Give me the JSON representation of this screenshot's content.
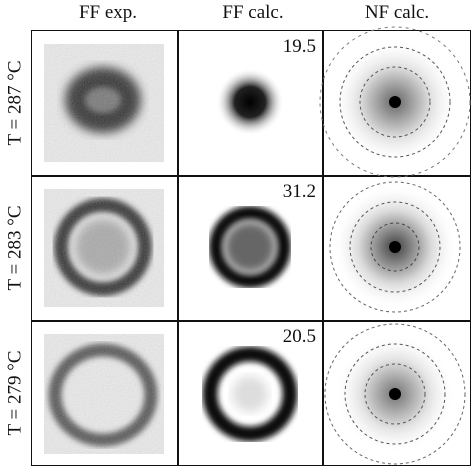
{
  "column_headers": [
    "FF exp.",
    "FF calc.",
    "NF calc."
  ],
  "rows": [
    {
      "label": "T = 287 °C",
      "value": "19.5"
    },
    {
      "label": "T = 283 °C",
      "value": "31.2"
    },
    {
      "label": "T = 279 °C",
      "value": "20.5"
    }
  ]
}
